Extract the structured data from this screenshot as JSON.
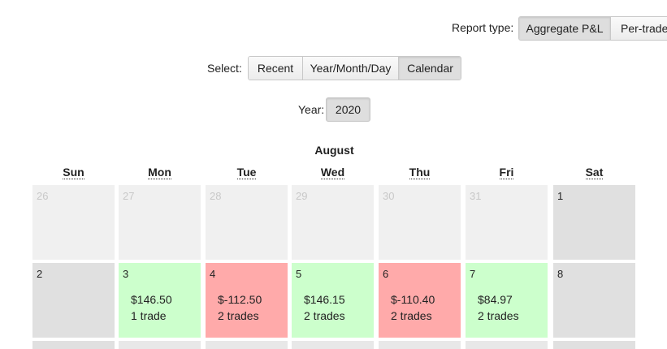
{
  "report_type": {
    "label": "Report type:",
    "options": [
      "Aggregate P&L",
      "Per-trade"
    ],
    "selected": "Aggregate P&L"
  },
  "select": {
    "label": "Select:",
    "options": [
      "Recent",
      "Year/Month/Day",
      "Calendar"
    ],
    "selected": "Calendar"
  },
  "year": {
    "label": "Year:",
    "value": "2020"
  },
  "calendar": {
    "month": "August",
    "weekdays": [
      "Sun",
      "Mon",
      "Tue",
      "Wed",
      "Thu",
      "Fri",
      "Sat"
    ],
    "week1": [
      {
        "day": "26",
        "kind": "outside"
      },
      {
        "day": "27",
        "kind": "outside"
      },
      {
        "day": "28",
        "kind": "outside"
      },
      {
        "day": "29",
        "kind": "outside"
      },
      {
        "day": "30",
        "kind": "outside"
      },
      {
        "day": "31",
        "kind": "outside"
      },
      {
        "day": "1",
        "kind": "weekend"
      }
    ],
    "week2": [
      {
        "day": "2",
        "kind": "weekend"
      },
      {
        "day": "3",
        "kind": "profit",
        "pnl": "$146.50",
        "trades": "1 trade"
      },
      {
        "day": "4",
        "kind": "loss",
        "pnl": "$-112.50",
        "trades": "2 trades"
      },
      {
        "day": "5",
        "kind": "profit",
        "pnl": "$146.15",
        "trades": "2 trades"
      },
      {
        "day": "6",
        "kind": "loss",
        "pnl": "$-110.40",
        "trades": "2 trades"
      },
      {
        "day": "7",
        "kind": "profit",
        "pnl": "$84.97",
        "trades": "2 trades"
      },
      {
        "day": "8",
        "kind": "weekend"
      }
    ]
  },
  "colors": {
    "profit": "#ccffcc",
    "loss": "#ffaaaa",
    "weekend": "#e0e0e0",
    "outside": "#f0f0f0"
  }
}
